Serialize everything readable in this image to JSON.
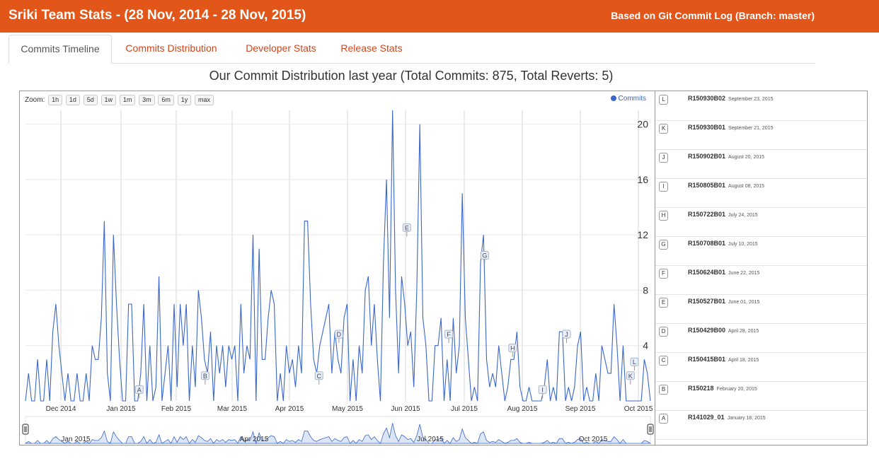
{
  "header": {
    "title": "Sriki Team Stats - (28 Nov, 2014 - 28 Nov, 2015)",
    "subtitle": "Based on Git Commit Log (Branch: master)"
  },
  "tabs": [
    {
      "label": "Commits Timeline",
      "active": true
    },
    {
      "label": "Commits Distribution",
      "active": false
    },
    {
      "label": "Developer Stats",
      "active": false
    },
    {
      "label": "Release Stats",
      "active": false
    }
  ],
  "chart_title": "Our Commit Distribution last year (Total Commits: 875, Total Reverts: 5)",
  "zoom": {
    "label": "Zoom:",
    "options": [
      "1h",
      "1d",
      "5d",
      "1w",
      "1m",
      "3m",
      "6m",
      "1y",
      "max"
    ]
  },
  "legend_label": "Commits",
  "colors": {
    "brand": "#e2561a",
    "tab_link": "#d0461b",
    "series": "#3a67c9"
  },
  "chart_data": {
    "type": "line",
    "title": "Our Commit Distribution last year (Total Commits: 875, Total Reverts: 5)",
    "series": [
      {
        "name": "Commits"
      }
    ],
    "x_tick_labels": [
      "Dec 2014",
      "Jan 2015",
      "Feb 2015",
      "Mar 2015",
      "Apr 2015",
      "May 2015",
      "Jun 2015",
      "Jul 2015",
      "Aug 2015",
      "Sep 2015",
      "Oct 2015"
    ],
    "y_ticks": [
      4,
      8,
      12,
      16,
      20
    ],
    "ylim": [
      0,
      21
    ],
    "navigator_labels": [
      "Jan 2015",
      "Apr 2015",
      "Jul 2015",
      "Oct 2015"
    ],
    "grid": true,
    "legend": "top-right",
    "values": [
      0,
      2,
      0,
      0,
      3,
      0,
      0,
      3,
      0,
      5,
      7,
      4,
      2,
      0,
      2,
      0,
      0,
      2,
      0,
      0,
      2,
      0,
      4,
      3,
      3,
      6,
      13,
      2,
      0,
      12,
      7,
      3,
      0,
      0,
      7,
      7,
      0,
      0,
      2,
      7,
      0,
      4,
      0,
      1,
      9,
      0,
      2,
      4,
      0,
      7,
      1,
      7,
      4,
      7,
      0,
      4,
      1,
      8,
      6,
      3,
      2,
      5,
      0,
      4,
      2,
      4,
      1,
      4,
      3,
      4,
      0,
      7,
      2,
      4,
      3,
      12,
      0,
      11,
      3,
      3,
      6,
      8,
      7,
      0,
      2,
      0,
      4,
      2,
      3,
      1,
      4,
      2,
      13,
      13,
      7,
      3,
      2,
      4,
      5,
      6,
      7,
      2,
      5,
      3,
      2,
      6,
      7,
      0,
      3,
      0,
      4,
      2,
      8,
      9,
      4,
      7,
      3,
      0,
      10,
      16,
      6,
      21,
      8,
      2,
      9,
      7,
      4,
      5,
      1,
      8,
      20,
      6,
      4,
      0,
      0,
      4,
      4,
      6,
      0,
      3,
      0,
      6,
      2,
      4,
      15,
      6,
      3,
      0,
      1,
      0,
      10,
      12,
      3,
      1,
      2,
      1,
      4,
      2,
      0,
      1,
      3,
      3,
      5,
      1,
      0,
      0,
      1,
      0,
      0,
      0,
      0,
      1,
      3,
      0,
      1,
      0,
      5,
      5,
      0,
      1,
      0,
      1,
      4,
      5,
      0,
      1,
      0,
      0,
      2,
      0,
      4,
      3,
      2,
      2,
      7,
      4,
      0,
      4,
      0,
      0,
      0,
      0,
      0,
      0,
      3,
      2,
      0
    ]
  },
  "flags": [
    {
      "letter": "A",
      "value": 0.8
    },
    {
      "letter": "B",
      "value": 1.8
    },
    {
      "letter": "C",
      "value": 1.8
    },
    {
      "letter": "D",
      "value": 4.8
    },
    {
      "letter": "E",
      "value": 12.5
    },
    {
      "letter": "F",
      "value": 4.8
    },
    {
      "letter": "G",
      "value": 10.5
    },
    {
      "letter": "H",
      "value": 3.8
    },
    {
      "letter": "I",
      "value": 0.8
    },
    {
      "letter": "J",
      "value": 4.8
    },
    {
      "letter": "K",
      "value": 1.8
    },
    {
      "letter": "L",
      "value": 2.8
    }
  ],
  "releases": [
    {
      "letter": "L",
      "name": "R150930B02",
      "date": "September 23, 2015"
    },
    {
      "letter": "K",
      "name": "R150930B01",
      "date": "September 21, 2015"
    },
    {
      "letter": "J",
      "name": "R150902B01",
      "date": "August 20, 2015"
    },
    {
      "letter": "I",
      "name": "R150805B01",
      "date": "August 08, 2015"
    },
    {
      "letter": "H",
      "name": "R150722B01",
      "date": "July 24, 2015"
    },
    {
      "letter": "G",
      "name": "R150708B01",
      "date": "July 10, 2015"
    },
    {
      "letter": "F",
      "name": "R150624B01",
      "date": "June 22, 2015"
    },
    {
      "letter": "E",
      "name": "R150527B01",
      "date": "June 01, 2015"
    },
    {
      "letter": "D",
      "name": "R150429B00",
      "date": "April 28, 2015"
    },
    {
      "letter": "C",
      "name": "R150415B01",
      "date": "April 18, 2015"
    },
    {
      "letter": "B",
      "name": "R150218",
      "date": "February 20, 2015"
    },
    {
      "letter": "A",
      "name": "R141029_01",
      "date": "January 18, 2015"
    }
  ]
}
